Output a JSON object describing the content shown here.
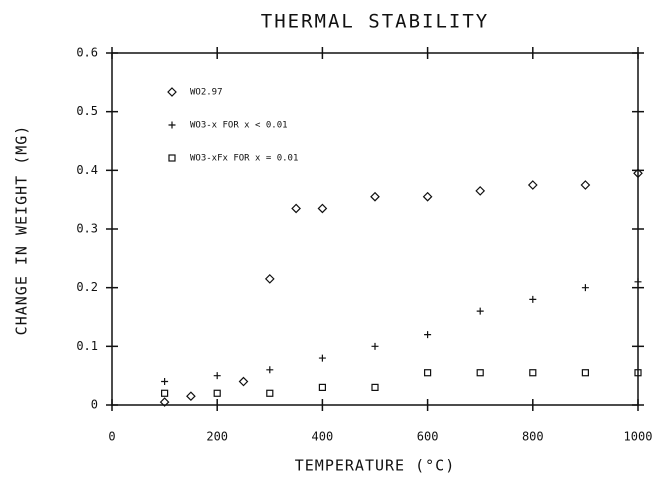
{
  "chart_data": {
    "type": "scatter",
    "title": "THERMAL STABILITY",
    "x_label": "TEMPERATURE (°C)",
    "y_label": "CHANGE IN WEIGHT (MG)",
    "xlim": [
      0,
      1000
    ],
    "xticks": [
      0,
      200,
      400,
      600,
      800,
      1000
    ],
    "ylim": [
      0,
      0.6
    ],
    "yticks": [
      0,
      0.1,
      0.2,
      0.3,
      0.4,
      0.5,
      0.6
    ],
    "grid": false,
    "legend": "upper left",
    "series": [
      {
        "name": "WO2.97",
        "color": "#111111",
        "marker": "diamond",
        "x": [
          100,
          150,
          250,
          300,
          350,
          400,
          500,
          600,
          700,
          800,
          900,
          1000
        ],
        "values": [
          0.005,
          0.015,
          0.04,
          0.215,
          0.335,
          0.335,
          0.355,
          0.355,
          0.365,
          0.375,
          0.375,
          0.395
        ]
      },
      {
        "name": "WO3-x FOR x < 0.01",
        "color": "#111111",
        "marker": "plus",
        "x": [
          100,
          200,
          300,
          400,
          500,
          600,
          700,
          800,
          900,
          1000
        ],
        "values": [
          0.04,
          0.05,
          0.06,
          0.08,
          0.1,
          0.12,
          0.16,
          0.18,
          0.2,
          0.21
        ]
      },
      {
        "name": "WO3-xFx FOR x = 0.01",
        "color": "#111111",
        "marker": "square",
        "x": [
          100,
          200,
          300,
          400,
          500,
          600,
          700,
          800,
          900,
          1000
        ],
        "values": [
          0.02,
          0.02,
          0.02,
          0.03,
          0.03,
          0.055,
          0.055,
          0.055,
          0.055,
          0.055
        ]
      }
    ]
  }
}
